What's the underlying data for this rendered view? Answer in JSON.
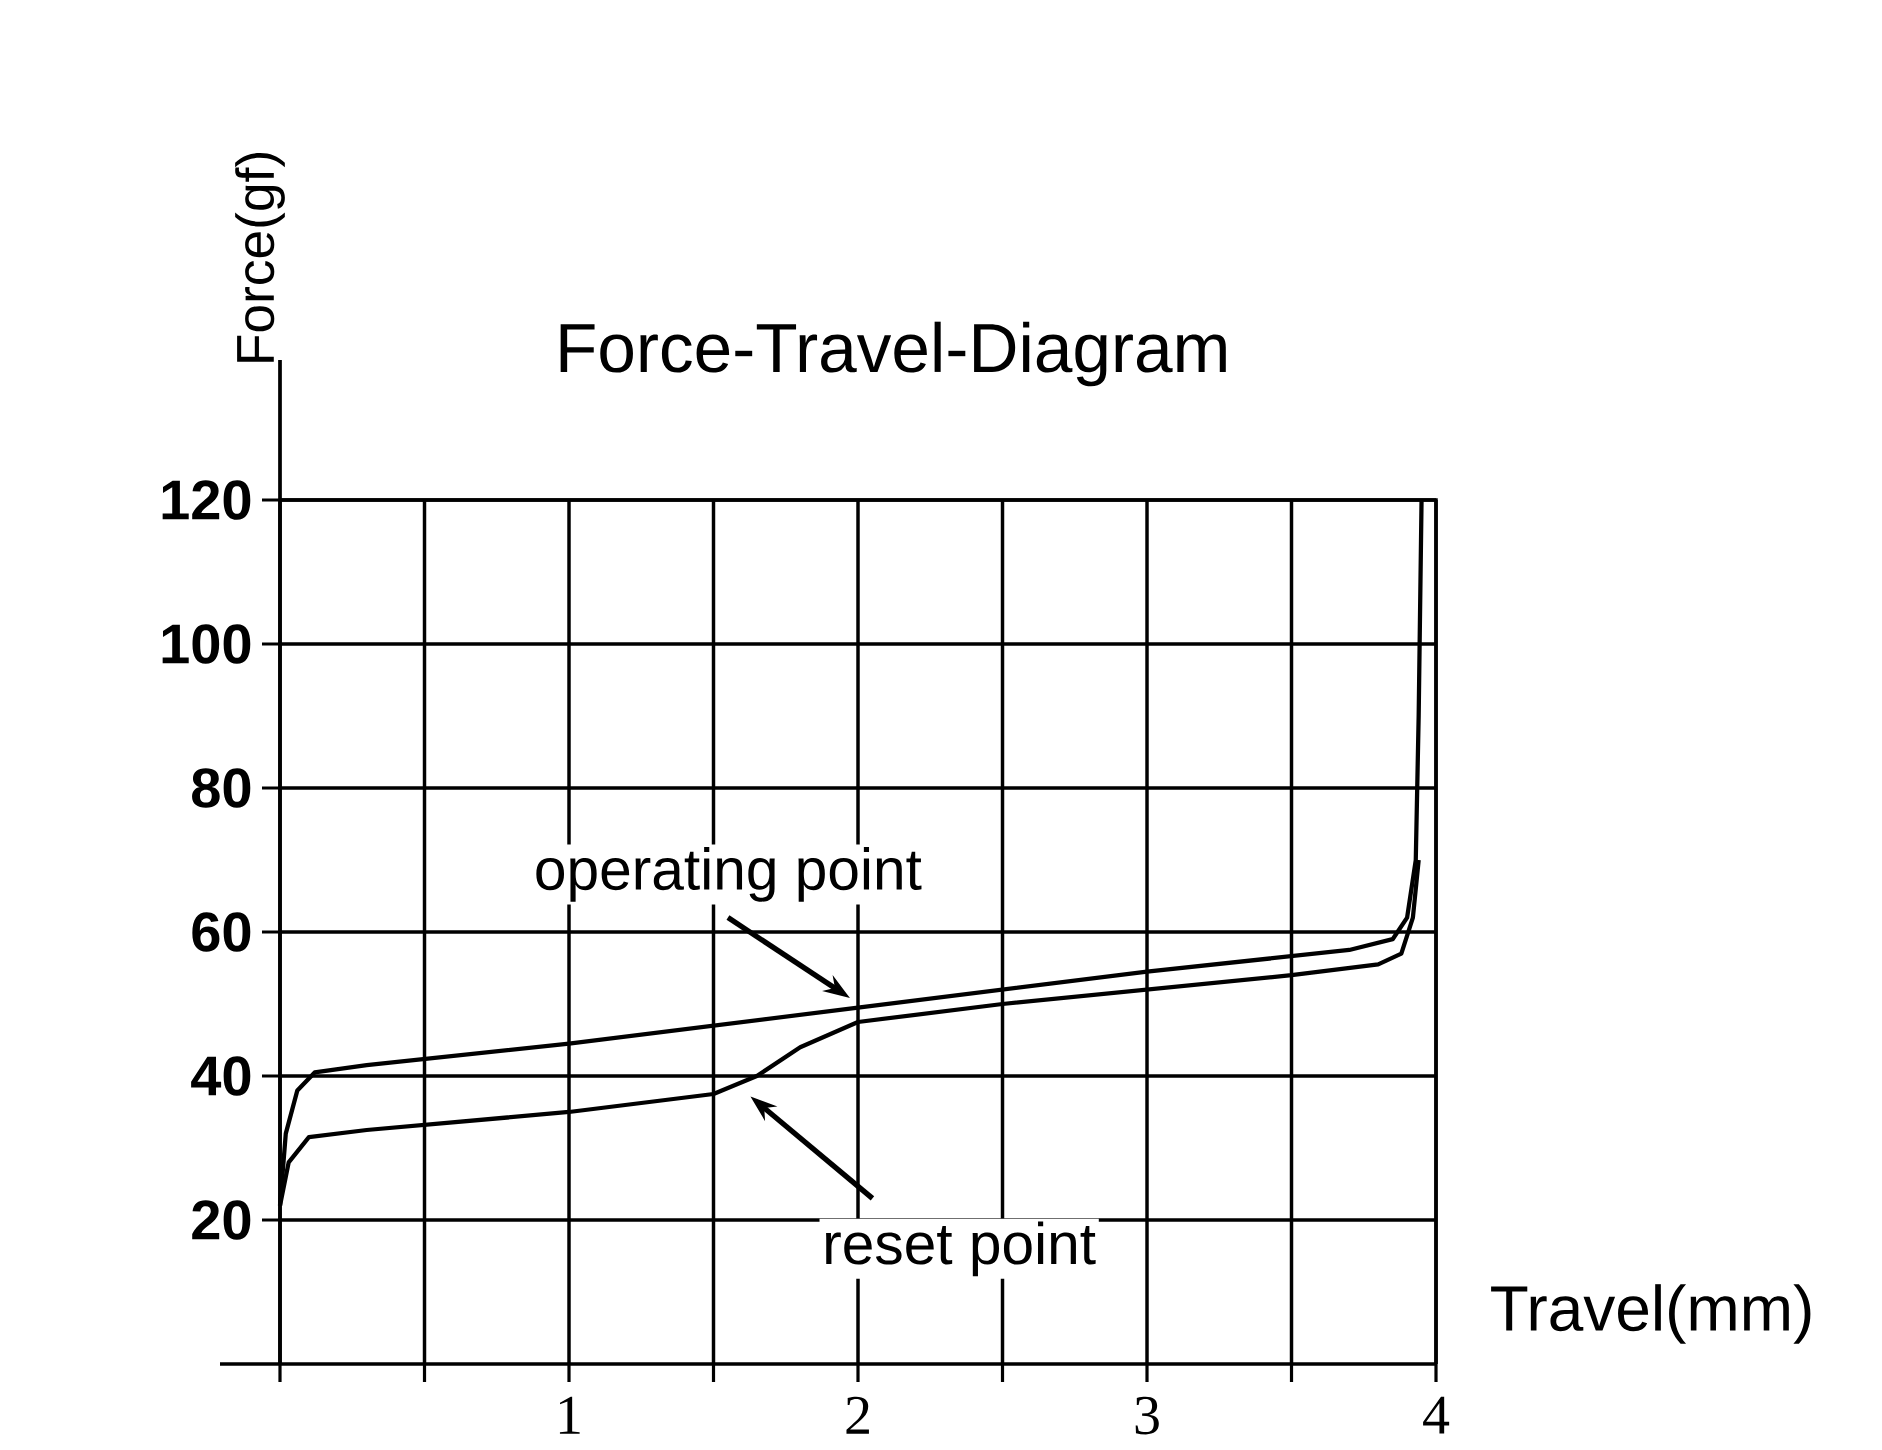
{
  "chart_data": {
    "type": "line",
    "title": "Force-Travel-Diagram",
    "xlabel": "Travel(mm)",
    "ylabel": "Force(gf)",
    "xlim": [
      0,
      4
    ],
    "ylim": [
      0,
      120
    ],
    "xticks": [
      {
        "value": 0,
        "label": null
      },
      {
        "value": 0.5,
        "label": null
      },
      1,
      {
        "value": 1.5,
        "label": null
      },
      2,
      {
        "value": 2.5,
        "label": null
      },
      3,
      {
        "value": 3.5,
        "label": null
      },
      4
    ],
    "yticks": [
      20,
      40,
      60,
      80,
      100,
      120
    ],
    "grid": true,
    "series": [
      {
        "color": "#000000",
        "x": [
          0,
          0.02,
          0.06,
          0.12,
          0.3,
          1,
          2,
          3,
          3.7,
          3.85,
          3.9,
          3.93,
          3.94,
          3.95
        ],
        "values": [
          22,
          32,
          38,
          40.5,
          41.5,
          44.5,
          49.5,
          54.5,
          57.5,
          59,
          62,
          70,
          90,
          120
        ]
      },
      {
        "color": "#000000",
        "x": [
          0,
          0.03,
          0.1,
          0.3,
          1,
          1.5,
          1.65,
          1.8,
          2,
          2.5,
          3,
          3.5,
          3.8,
          3.88,
          3.92,
          3.94
        ],
        "values": [
          22,
          28,
          31.5,
          32.5,
          35,
          37.5,
          40,
          44,
          47.5,
          50,
          52,
          54,
          55.5,
          57,
          62,
          70
        ]
      }
    ],
    "annotations": [
      {
        "text": "operating point",
        "x": 2,
        "y": 50
      },
      {
        "text": "reset point",
        "x": 1.6,
        "y": 38
      }
    ]
  }
}
